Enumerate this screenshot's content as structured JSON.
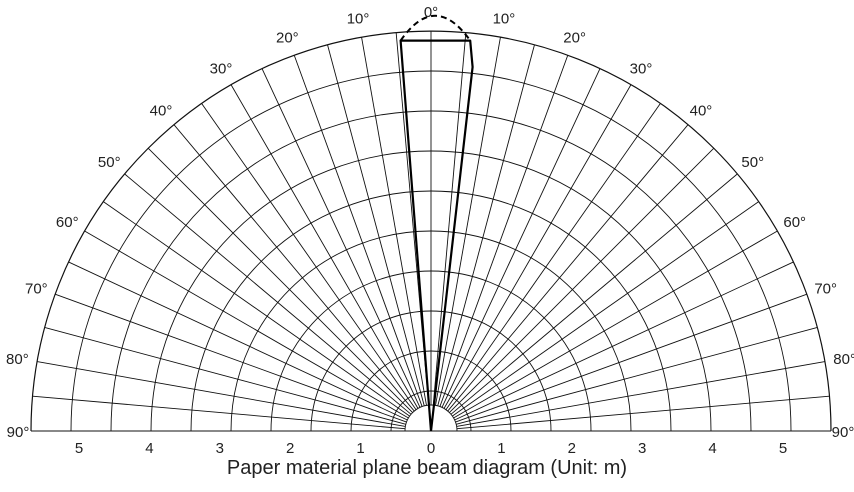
{
  "diagram": {
    "caption": "Paper material plane beam diagram (Unit: m)",
    "angle_labels": [
      "0",
      "10",
      "20",
      "30",
      "40",
      "50",
      "60",
      "70",
      "80",
      "90"
    ],
    "degree_symbol": "°",
    "distance_labels": [
      "5",
      "4",
      "3",
      "2",
      "1",
      "0",
      "1",
      "2",
      "3",
      "4",
      "5"
    ]
  },
  "chart_data": {
    "type": "polar-half",
    "angle_ticks_deg": [
      0,
      10,
      20,
      30,
      40,
      50,
      60,
      70,
      80,
      90
    ],
    "radial_ticks_m": [
      0,
      1,
      2,
      3,
      4,
      5
    ],
    "beam_solid": [
      {
        "x": 0.0,
        "y": 0.0
      },
      {
        "x": -0.38,
        "y": 4.88
      },
      {
        "x": 0.49,
        "y": 4.88
      },
      {
        "x": 0.52,
        "y": 4.55
      },
      {
        "x": 0.0,
        "y": 0.0
      }
    ],
    "beam_dashed": [
      {
        "x": -0.38,
        "y": 4.88
      },
      {
        "x": 0.05,
        "y": 5.2
      },
      {
        "x": 0.49,
        "y": 4.88
      }
    ],
    "colors": {
      "lines": "#111111",
      "beam": "#000000"
    }
  }
}
